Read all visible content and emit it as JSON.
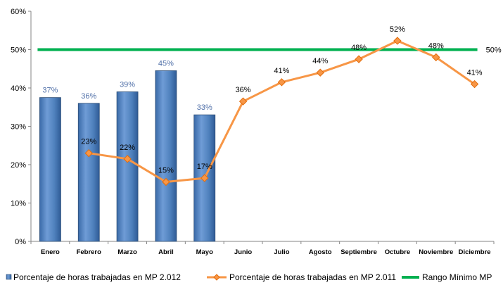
{
  "chart_data": {
    "type": "bar",
    "categories": [
      "Enero",
      "Febrero",
      "Marzo",
      "Abril",
      "Mayo",
      "Junio",
      "Julio",
      "Agosto",
      "Septiembre",
      "Octubre",
      "Noviembre",
      "Diciembre"
    ],
    "ylim": [
      0,
      60
    ],
    "yticks": [
      0,
      10,
      20,
      30,
      40,
      50,
      60
    ],
    "ytick_labels": [
      "0%",
      "10%",
      "20%",
      "30%",
      "40%",
      "50%",
      "60%"
    ],
    "grid": false,
    "legend_position": "bottom",
    "series": [
      {
        "name": "Porcentaje de horas trabajadas en MP 2.012",
        "type": "bar",
        "values": [
          37.5,
          36,
          39,
          44.5,
          33,
          null,
          null,
          null,
          null,
          null,
          null,
          null
        ],
        "labels": [
          "37%",
          "36%",
          "39%",
          "45%",
          "33%",
          null,
          null,
          null,
          null,
          null,
          null,
          null
        ],
        "color": "#4F81BD"
      },
      {
        "name": "Porcentaje de horas trabajadas en MP 2.011",
        "type": "line",
        "values": [
          null,
          23,
          21.5,
          15.5,
          16.5,
          36.5,
          41.5,
          44,
          47.5,
          52.3,
          48,
          41
        ],
        "labels": [
          null,
          "23%",
          "22%",
          "15%",
          "17%",
          "36%",
          "41%",
          "44%",
          "48%",
          "52%",
          "48%",
          "41%"
        ],
        "color": "#F79646"
      },
      {
        "name": "Rango Mínimo MP",
        "type": "line",
        "values": [
          50,
          50,
          50,
          50,
          50,
          50,
          50,
          50,
          50,
          50,
          50,
          50
        ],
        "end_label": "50%",
        "color": "#00B050"
      }
    ]
  }
}
